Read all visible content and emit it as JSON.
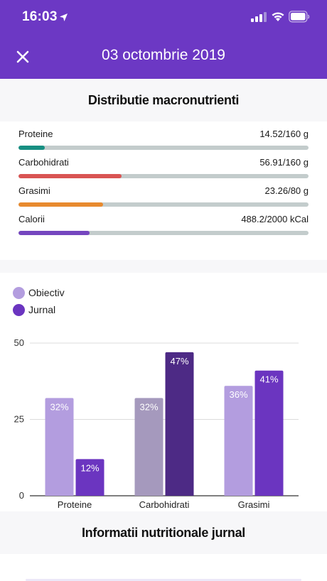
{
  "status_bar": {
    "time": "16:03"
  },
  "header": {
    "title": "03 octombrie 2019"
  },
  "macro_section": {
    "title": "Distributie macronutrienti"
  },
  "macros": [
    {
      "name": "Proteine",
      "value_text": "14.52/160 g",
      "fraction": 0.0908,
      "color": "#178f82"
    },
    {
      "name": "Carbohidrati",
      "value_text": "56.91/160 g",
      "fraction": 0.3557,
      "color": "#d95453"
    },
    {
      "name": "Grasimi",
      "value_text": "23.26/80 g",
      "fraction": 0.2908,
      "color": "#e88a2e"
    },
    {
      "name": "Calorii",
      "value_text": "488.2/2000 kCal",
      "fraction": 0.2441,
      "color": "#7546bf"
    }
  ],
  "legend": [
    {
      "label": "Obiectiv",
      "color": "#b39ddf"
    },
    {
      "label": "Jurnal",
      "color": "#6b35c0"
    }
  ],
  "chart_data": {
    "type": "bar",
    "categories": [
      "Proteine",
      "Carbohidrati",
      "Grasimi"
    ],
    "series": [
      {
        "name": "Obiectiv",
        "values": [
          32,
          32,
          36
        ],
        "labels": [
          "32%",
          "32%",
          "36%"
        ]
      },
      {
        "name": "Jurnal",
        "values": [
          12,
          47,
          41
        ],
        "labels": [
          "12%",
          "47%",
          "41%"
        ]
      }
    ],
    "bar_colors": [
      [
        "#b39ddf",
        "#6b35c0"
      ],
      [
        "#a599bd",
        "#4d2a85"
      ],
      [
        "#b39ddf",
        "#6b35c0"
      ]
    ],
    "yticks": [
      "0",
      "25",
      "50"
    ],
    "ylim": [
      0,
      50
    ],
    "grid": true
  },
  "info_section": {
    "title": "Informatii nutritionale jurnal"
  }
}
